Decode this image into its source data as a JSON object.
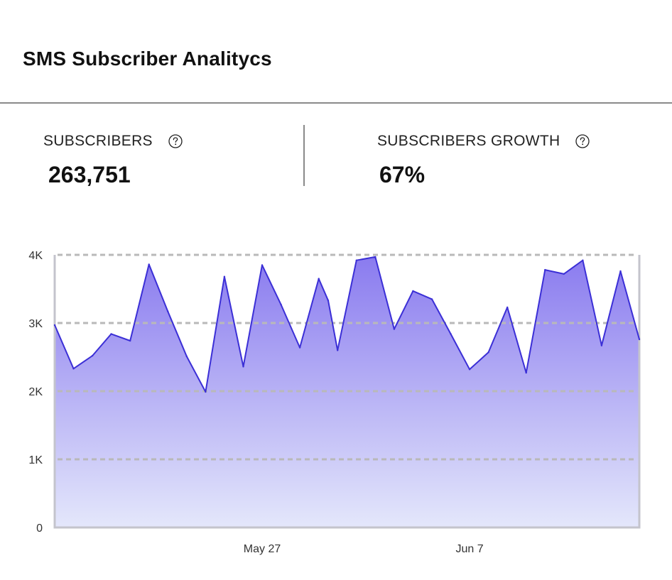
{
  "header": {
    "title": "SMS Subscriber Analitycs"
  },
  "stats": {
    "subscribers": {
      "label": "SUBSCRIBERS",
      "value": "263,751",
      "help_icon": "question-circle-icon"
    },
    "growth": {
      "label": "SUBSCRIBERS GROWTH",
      "value": "67%",
      "help_icon": "question-circle-icon"
    }
  },
  "colors": {
    "line": "#3b2fd6",
    "fill_top": "#8a7bef",
    "fill_bottom": "#e4e7fb",
    "grid": "#b9b9b9",
    "axis": "#c4c4cc"
  },
  "chart_data": {
    "type": "area",
    "title": "",
    "xlabel": "",
    "ylabel": "",
    "ylim": [
      0,
      4000
    ],
    "yticks": [
      0,
      1000,
      2000,
      3000,
      4000
    ],
    "ytick_labels": [
      "0",
      "1K",
      "2K",
      "3K",
      "4K"
    ],
    "xticks": [
      11,
      22
    ],
    "xtick_labels": [
      "May 27",
      "Jun 7"
    ],
    "grid": "horizontal dashed",
    "series": [
      {
        "name": "Subscribers",
        "x": [
          0,
          1,
          2,
          3,
          4,
          5,
          6,
          7,
          8,
          9,
          10,
          11,
          12,
          13,
          14,
          14.5,
          15,
          16,
          17,
          18,
          19,
          20,
          21,
          22,
          23,
          24,
          25,
          26,
          27,
          28,
          29,
          30,
          31
        ],
        "values": [
          2970,
          2330,
          2520,
          2840,
          2740,
          3860,
          3170,
          2510,
          1990,
          3680,
          2360,
          3850,
          3270,
          2640,
          3650,
          3330,
          2600,
          3920,
          3970,
          2910,
          3470,
          3350,
          2840,
          2320,
          2570,
          3230,
          2270,
          3780,
          3720,
          3920,
          2670,
          3760,
          2760
        ]
      }
    ]
  }
}
